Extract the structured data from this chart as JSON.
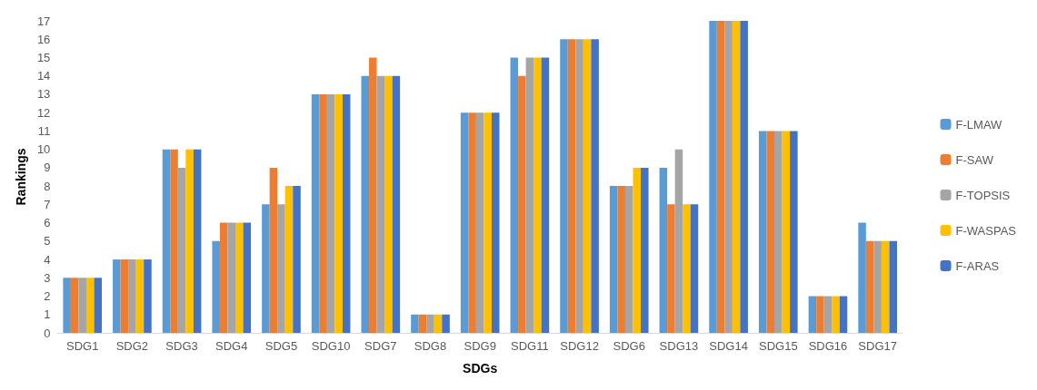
{
  "chart_data": {
    "type": "bar",
    "xlabel": "SDGs",
    "ylabel": "Rankings",
    "categories": [
      "SDG1",
      "SDG2",
      "SDG3",
      "SDG4",
      "SDG5",
      "SDG10",
      "SDG7",
      "SDG8",
      "SDG9",
      "SDG11",
      "SDG12",
      "SDG6",
      "SDG13",
      "SDG14",
      "SDG15",
      "SDG16",
      "SDG17"
    ],
    "series": [
      {
        "name": "F-LMAW",
        "color": "#5b9bd5",
        "values": [
          3,
          4,
          10,
          5,
          7,
          13,
          14,
          1,
          12,
          15,
          16,
          8,
          9,
          17,
          11,
          2,
          6
        ]
      },
      {
        "name": "F-SAW",
        "color": "#ed7d31",
        "values": [
          3,
          4,
          10,
          6,
          9,
          13,
          15,
          1,
          12,
          14,
          16,
          8,
          7,
          17,
          11,
          2,
          5
        ]
      },
      {
        "name": "F-TOPSIS",
        "color": "#a5a5a5",
        "values": [
          3,
          4,
          9,
          6,
          7,
          13,
          14,
          1,
          12,
          15,
          16,
          8,
          10,
          17,
          11,
          2,
          5
        ]
      },
      {
        "name": "F-WASPAS",
        "color": "#ffc000",
        "values": [
          3,
          4,
          10,
          6,
          8,
          13,
          14,
          1,
          12,
          15,
          16,
          9,
          7,
          17,
          11,
          2,
          5
        ]
      },
      {
        "name": "F-ARAS",
        "color": "#4472c4",
        "values": [
          3,
          4,
          10,
          6,
          8,
          13,
          14,
          1,
          12,
          15,
          16,
          9,
          7,
          17,
          11,
          2,
          5
        ]
      }
    ],
    "ylim": [
      0,
      17
    ],
    "yticks": [
      0,
      1,
      2,
      3,
      4,
      5,
      6,
      7,
      8,
      9,
      10,
      11,
      12,
      13,
      14,
      15,
      16,
      17
    ],
    "grid": false,
    "legend": "right"
  }
}
